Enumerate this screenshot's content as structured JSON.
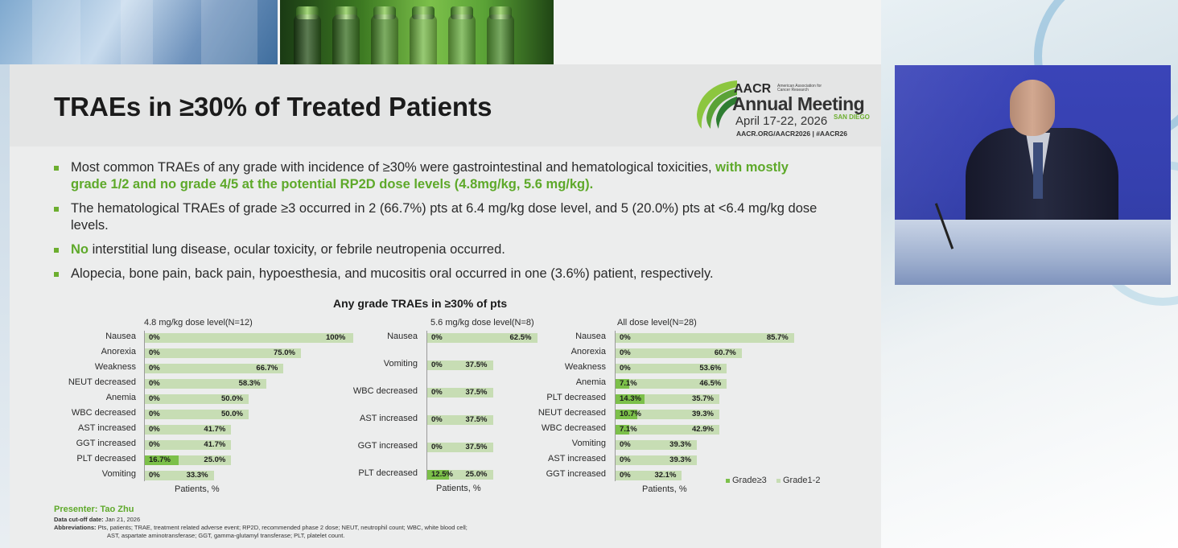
{
  "slide": {
    "title": "TRAEs in ≥30% of Treated Patients",
    "bullets": [
      {
        "text": "Most common TRAEs of any grade with incidence of ≥30% were gastrointestinal and hematological toxicities, ",
        "highlight": "with mostly grade 1/2 and no grade 4/5 at the potential RP2D dose levels (4.8mg/kg, 5.6 mg/kg)."
      },
      {
        "text": "The hematological TRAEs of grade ≥3 occurred in 2 (66.7%) pts at 6.4 mg/kg dose level, and 5 (20.0%) pts at <6.4 mg/kg dose levels."
      },
      {
        "highlight": "No",
        "text": " interstitial lung disease, ocular toxicity, or febrile neutropenia occurred."
      },
      {
        "text": "Alopecia, bone pain, back pain, hypoesthesia, and mucositis oral occurred in one (3.6%) patient, respectively."
      }
    ],
    "presenter": "Presenter: Tao Zhu",
    "cutoff_label": "Data cut-off date:",
    "cutoff_value": " Jan 21, 2026",
    "abbrev_label": "Abbreviations:",
    "abbrev_line1": " Pts, patients; TRAE, treatment related adverse event; RP2D, recommended phase 2 dose; NEUT, neutrophil count; WBC, white blood cell;",
    "abbrev_line2": "AST, aspartate aminotransferase; GGT, gamma-glutamyl transferase; PLT, platelet count."
  },
  "logo": {
    "aacr": "AACR",
    "org": "American Association for Cancer Research",
    "annual": "Annual Meeting",
    "dates": "April 17-22, 2026",
    "city": "SAN DIEGO",
    "url": "AACR.ORG/AACR2026  |  #AACR26"
  },
  "colors": {
    "accent_green": "#5ea92a",
    "grade3": "#7cc04a",
    "grade12": "#c7ddb4"
  },
  "chart_data": {
    "type": "bar",
    "title": "Any grade TRAEs in ≥30% of pts",
    "orientation": "horizontal",
    "stacked": true,
    "xlabel": "Patients, %",
    "legend": [
      "Grade≥3",
      "Grade1-2"
    ],
    "legend_position": "bottom-right",
    "panels": [
      {
        "title": "4.8 mg/kg dose level(N=12)",
        "categories": [
          "Nausea",
          "Anorexia",
          "Weakness",
          "NEUT decreased",
          "Anemia",
          "WBC decreased",
          "AST increased",
          "GGT increased",
          "PLT decreased",
          "Vomiting"
        ],
        "series": [
          {
            "name": "Grade≥3",
            "values": [
              0,
              0,
              0,
              0,
              0,
              0,
              0,
              0,
              16.7,
              0
            ],
            "labels": [
              "0%",
              "0%",
              "0%",
              "0%",
              "0%",
              "0%",
              "0%",
              "0%",
              "16.7%",
              "0%"
            ]
          },
          {
            "name": "Grade1-2",
            "values": [
              100,
              75.0,
              66.7,
              58.3,
              50.0,
              50.0,
              41.7,
              41.7,
              25.0,
              33.3
            ],
            "labels": [
              "100%",
              "75.0%",
              "66.7%",
              "58.3%",
              "50.0%",
              "50.0%",
              "41.7%",
              "41.7%",
              "25.0%",
              "33.3%"
            ]
          }
        ]
      },
      {
        "title": "5.6 mg/kg dose level(N=8)",
        "categories": [
          "Nausea",
          "Vomiting",
          "WBC decreased",
          "AST increased",
          "GGT increased",
          "PLT decreased"
        ],
        "series": [
          {
            "name": "Grade≥3",
            "values": [
              0,
              0,
              0,
              0,
              0,
              12.5
            ],
            "labels": [
              "0%",
              "0%",
              "0%",
              "0%",
              "0%",
              "12.5%"
            ]
          },
          {
            "name": "Grade1-2",
            "values": [
              62.5,
              37.5,
              37.5,
              37.5,
              37.5,
              25.0
            ],
            "labels": [
              "62.5%",
              "37.5%",
              "37.5%",
              "37.5%",
              "37.5%",
              "25.0%"
            ]
          }
        ]
      },
      {
        "title": "All dose level(N=28)",
        "categories": [
          "Nausea",
          "Anorexia",
          "Weakness",
          "Anemia",
          "PLT decreased",
          "NEUT decreased",
          "WBC decreased",
          "Vomiting",
          "AST increased",
          "GGT increased"
        ],
        "series": [
          {
            "name": "Grade≥3",
            "values": [
              0,
              0,
              0,
              7.1,
              14.3,
              10.7,
              7.1,
              0,
              0,
              0
            ],
            "labels": [
              "0%",
              "0%",
              "0%",
              "7.1%",
              "14.3%",
              "10.7%",
              "7.1%",
              "0%",
              "0%",
              "0%"
            ]
          },
          {
            "name": "Grade1-2",
            "values": [
              85.7,
              60.7,
              53.6,
              46.5,
              35.7,
              39.3,
              42.9,
              39.3,
              39.3,
              32.1
            ],
            "labels": [
              "85.7%",
              "60.7%",
              "53.6%",
              "46.5%",
              "35.7%",
              "39.3%",
              "42.9%",
              "39.3%",
              "39.3%",
              "32.1%"
            ]
          }
        ]
      }
    ]
  }
}
